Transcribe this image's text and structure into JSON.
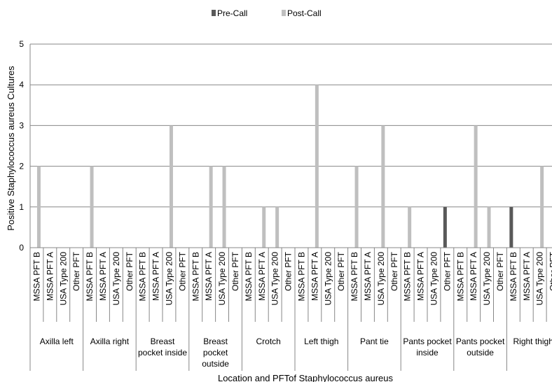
{
  "chart_data": {
    "type": "bar",
    "title": "",
    "xlabel": "Location and PFTof Staphylococcus aureus",
    "ylabel": "Positive Staphylococcus aureus Cultures",
    "ylim": [
      0,
      5
    ],
    "yticks": [
      "0",
      "1",
      "2",
      "3",
      "4",
      "5"
    ],
    "grid": true,
    "legend_position": "top",
    "pfts": [
      "MSSA PFT B",
      "MSSA PFT A",
      "USA Type 200",
      "Other PFT"
    ],
    "locations": [
      "Axilla left",
      "Axilla right",
      "Breast pocket inside",
      "Breast pocket outside",
      "Crotch",
      "Left thigh",
      "Pant tie",
      "Pants pocket inside",
      "Pants pocket outside",
      "Right thigh"
    ],
    "series": [
      {
        "name": "Pre-Call",
        "color": "#595959",
        "values": [
          0,
          0,
          0,
          0,
          0,
          0,
          0,
          0,
          0,
          0,
          0,
          0,
          0,
          0,
          0,
          0,
          0,
          0,
          0,
          0,
          0,
          0,
          0,
          0,
          0,
          0,
          0,
          0,
          0,
          0,
          0,
          1,
          0,
          0,
          0,
          0,
          1,
          0,
          0,
          0
        ]
      },
      {
        "name": "Post-Call",
        "color": "#bfbfbf",
        "values": [
          2,
          0,
          0,
          0,
          2,
          0,
          0,
          0,
          0,
          0,
          3,
          0,
          0,
          2,
          2,
          0,
          0,
          1,
          1,
          0,
          0,
          4,
          0,
          0,
          2,
          0,
          3,
          0,
          1,
          0,
          0,
          0,
          0,
          3,
          1,
          0,
          0,
          0,
          2,
          0
        ]
      }
    ]
  }
}
